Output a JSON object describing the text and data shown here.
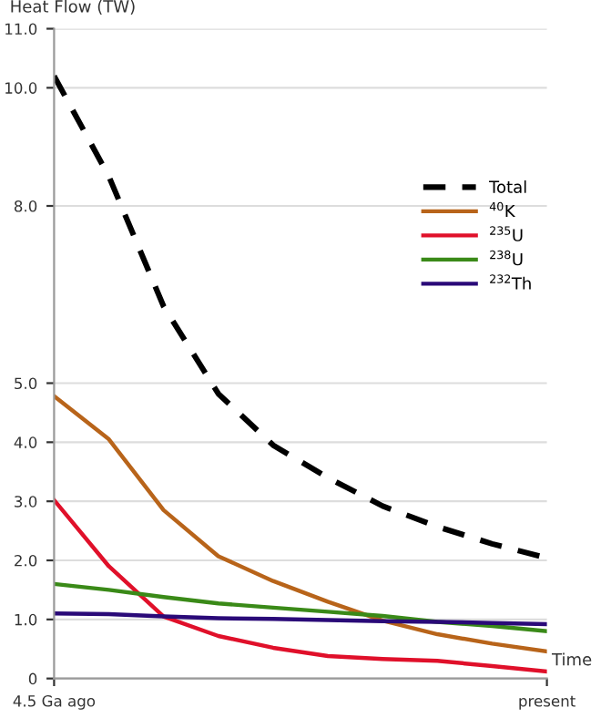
{
  "chart_data": {
    "type": "line",
    "ylabel": "Heat Flow (TW)",
    "xlabel": "Time",
    "categories": [
      "4.5 Ga ago",
      null,
      null,
      null,
      null,
      null,
      null,
      null,
      null,
      "present"
    ],
    "series": [
      {
        "name": "Total",
        "color": "#000000",
        "line_style": "dashed",
        "values": [
          10.2,
          8.5,
          6.3,
          4.82,
          3.95,
          3.4,
          2.92,
          2.57,
          2.28,
          2.04
        ]
      },
      {
        "name": "$^{40}$K",
        "color": "#b8641a",
        "values": [
          4.78,
          4.05,
          2.85,
          2.07,
          1.65,
          1.3,
          0.98,
          0.75,
          0.59,
          0.46
        ]
      },
      {
        "name": "$^{235}$U",
        "color": "#e0102a",
        "values": [
          3.02,
          1.9,
          1.05,
          0.72,
          0.52,
          0.38,
          0.33,
          0.3,
          0.21,
          0.12
        ]
      },
      {
        "name": "$^{238}$U",
        "color": "#3a8a18",
        "values": [
          1.6,
          1.5,
          1.38,
          1.27,
          1.2,
          1.13,
          1.06,
          0.96,
          0.89,
          0.8
        ]
      },
      {
        "name": "$^{232}$Th",
        "color": "#2a0a78",
        "values": [
          1.1,
          1.09,
          1.05,
          1.02,
          1.01,
          0.99,
          0.97,
          0.96,
          0.94,
          0.92
        ]
      }
    ],
    "ylim": [
      0,
      11.0
    ],
    "yticks": [
      0,
      {
        "value": 1,
        "label": "1.0"
      },
      {
        "value": 2,
        "label": "2.0"
      },
      {
        "value": 3,
        "label": "3.0"
      },
      {
        "value": 4,
        "label": "4.0"
      },
      {
        "value": 5,
        "label": "5.0"
      },
      {
        "value": 8,
        "label": "8.0"
      },
      {
        "value": 10,
        "label": "10.0"
      },
      {
        "value": 11,
        "label": "11.0"
      }
    ],
    "grid": "y",
    "legend": "right",
    "marker": "none",
    "line_style": "solid"
  }
}
